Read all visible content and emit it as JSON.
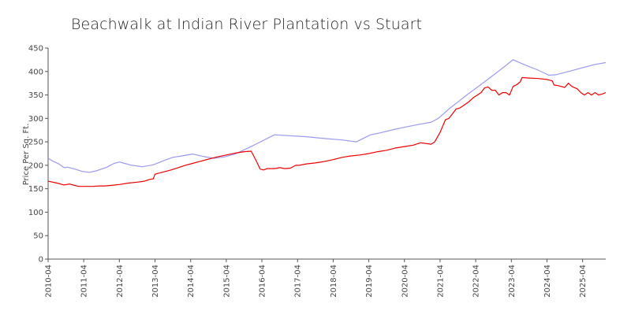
{
  "chart_data": {
    "type": "line",
    "title": "Beachwalk at Indian River Plantation vs Stuart",
    "xlabel": "",
    "ylabel": "Price Per Sq. Ft.",
    "ylim": [
      0,
      450
    ],
    "yticks": [
      0,
      50,
      100,
      150,
      200,
      250,
      300,
      350,
      400,
      450
    ],
    "xlim": [
      2010.25,
      2025.9
    ],
    "xticks": [
      2010.25,
      2011.25,
      2012.25,
      2013.25,
      2014.25,
      2015.25,
      2016.25,
      2017.25,
      2018.25,
      2019.25,
      2020.25,
      2021.25,
      2022.25,
      2023.25,
      2024.25,
      2025.25
    ],
    "xtick_labels": [
      "2010-04",
      "2011-04",
      "2012-04",
      "2013-04",
      "2014-04",
      "2015-04",
      "2016-04",
      "2017-04",
      "2018-04",
      "2019-04",
      "2020-04",
      "2021-04",
      "2022-04",
      "2023-04",
      "2024-04",
      "2025-04"
    ],
    "grid": false,
    "legend": "none",
    "series": [
      {
        "name": "Beachwalk at Indian River Plantation",
        "color": "#ee0000",
        "points": [
          [
            2010.25,
            166
          ],
          [
            2010.5,
            162
          ],
          [
            2010.7,
            158
          ],
          [
            2010.85,
            160
          ],
          [
            2011.0,
            157
          ],
          [
            2011.1,
            155
          ],
          [
            2011.3,
            155
          ],
          [
            2011.5,
            155
          ],
          [
            2011.7,
            156
          ],
          [
            2011.85,
            156
          ],
          [
            2012.0,
            157
          ],
          [
            2012.25,
            159
          ],
          [
            2012.5,
            162
          ],
          [
            2012.75,
            164
          ],
          [
            2012.95,
            166
          ],
          [
            2013.1,
            170
          ],
          [
            2013.2,
            171
          ],
          [
            2013.25,
            181
          ],
          [
            2013.5,
            186
          ],
          [
            2013.7,
            190
          ],
          [
            2013.9,
            195
          ],
          [
            2014.1,
            200
          ],
          [
            2014.3,
            204
          ],
          [
            2014.5,
            208
          ],
          [
            2014.75,
            213
          ],
          [
            2015.0,
            218
          ],
          [
            2015.25,
            222
          ],
          [
            2015.5,
            226
          ],
          [
            2015.75,
            229
          ],
          [
            2015.95,
            230
          ],
          [
            2016.1,
            208
          ],
          [
            2016.2,
            192
          ],
          [
            2016.3,
            190
          ],
          [
            2016.4,
            193
          ],
          [
            2016.6,
            193
          ],
          [
            2016.75,
            195
          ],
          [
            2016.9,
            193
          ],
          [
            2017.05,
            194
          ],
          [
            2017.2,
            200
          ],
          [
            2017.3,
            200
          ],
          [
            2017.5,
            203
          ],
          [
            2017.75,
            205
          ],
          [
            2018.0,
            208
          ],
          [
            2018.25,
            212
          ],
          [
            2018.5,
            217
          ],
          [
            2018.75,
            220
          ],
          [
            2019.0,
            222
          ],
          [
            2019.25,
            225
          ],
          [
            2019.5,
            229
          ],
          [
            2019.75,
            232
          ],
          [
            2020.0,
            237
          ],
          [
            2020.25,
            240
          ],
          [
            2020.5,
            243
          ],
          [
            2020.7,
            248
          ],
          [
            2020.9,
            246
          ],
          [
            2021.0,
            245
          ],
          [
            2021.1,
            250
          ],
          [
            2021.25,
            270
          ],
          [
            2021.4,
            297
          ],
          [
            2021.5,
            300
          ],
          [
            2021.6,
            310
          ],
          [
            2021.7,
            320
          ],
          [
            2021.8,
            322
          ],
          [
            2021.9,
            327
          ],
          [
            2022.05,
            335
          ],
          [
            2022.2,
            345
          ],
          [
            2022.3,
            350
          ],
          [
            2022.4,
            355
          ],
          [
            2022.5,
            365
          ],
          [
            2022.6,
            367
          ],
          [
            2022.7,
            360
          ],
          [
            2022.8,
            360
          ],
          [
            2022.9,
            350
          ],
          [
            2023.0,
            355
          ],
          [
            2023.1,
            355
          ],
          [
            2023.2,
            350
          ],
          [
            2023.3,
            368
          ],
          [
            2023.4,
            372
          ],
          [
            2023.5,
            378
          ],
          [
            2023.55,
            387
          ],
          [
            2023.75,
            386
          ],
          [
            2024.0,
            385
          ],
          [
            2024.25,
            383
          ],
          [
            2024.4,
            380
          ],
          [
            2024.45,
            371
          ],
          [
            2024.55,
            370
          ],
          [
            2024.75,
            366
          ],
          [
            2024.85,
            375
          ],
          [
            2024.95,
            368
          ],
          [
            2025.1,
            363
          ],
          [
            2025.2,
            355
          ],
          [
            2025.3,
            350
          ],
          [
            2025.4,
            355
          ],
          [
            2025.5,
            350
          ],
          [
            2025.6,
            355
          ],
          [
            2025.7,
            350
          ],
          [
            2025.8,
            352
          ],
          [
            2025.9,
            355
          ]
        ]
      },
      {
        "name": "Stuart",
        "color": "#9a9aee",
        "points": [
          [
            2010.25,
            215
          ],
          [
            2010.4,
            208
          ],
          [
            2010.55,
            203
          ],
          [
            2010.7,
            195
          ],
          [
            2010.8,
            196
          ],
          [
            2011.0,
            192
          ],
          [
            2011.2,
            187
          ],
          [
            2011.4,
            185
          ],
          [
            2011.6,
            188
          ],
          [
            2011.9,
            196
          ],
          [
            2012.1,
            204
          ],
          [
            2012.25,
            207
          ],
          [
            2012.4,
            204
          ],
          [
            2012.6,
            200
          ],
          [
            2012.9,
            197
          ],
          [
            2013.2,
            201
          ],
          [
            2013.5,
            210
          ],
          [
            2013.75,
            217
          ],
          [
            2014.0,
            220
          ],
          [
            2014.3,
            224
          ],
          [
            2014.6,
            219
          ],
          [
            2014.9,
            215
          ],
          [
            2015.2,
            218
          ],
          [
            2015.5,
            224
          ],
          [
            2016.0,
            242
          ],
          [
            2016.6,
            265
          ],
          [
            2017.5,
            261
          ],
          [
            2018.0,
            257
          ],
          [
            2018.5,
            254
          ],
          [
            2018.9,
            250
          ],
          [
            2019.3,
            265
          ],
          [
            2019.5,
            268
          ],
          [
            2020.0,
            277
          ],
          [
            2020.5,
            285
          ],
          [
            2021.0,
            292
          ],
          [
            2021.2,
            300
          ],
          [
            2021.5,
            320
          ],
          [
            2022.0,
            350
          ],
          [
            2022.5,
            378
          ],
          [
            2023.0,
            407
          ],
          [
            2023.3,
            425
          ],
          [
            2023.6,
            415
          ],
          [
            2024.0,
            403
          ],
          [
            2024.3,
            392
          ],
          [
            2024.5,
            393
          ],
          [
            2024.8,
            399
          ],
          [
            2025.2,
            407
          ],
          [
            2025.6,
            415
          ],
          [
            2025.9,
            419
          ]
        ]
      }
    ]
  }
}
